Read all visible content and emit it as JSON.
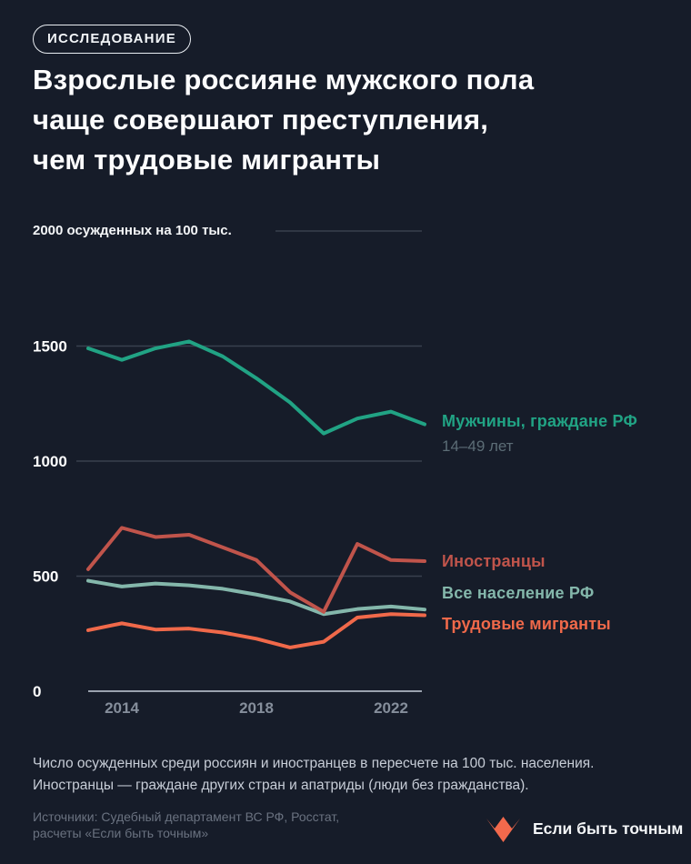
{
  "badge": {
    "label": "ИССЛЕДОВАНИЕ"
  },
  "title": {
    "lines": [
      "Взрослые россияне мужского пола",
      "чаще совершают преступления,",
      "чем трудовые мигранты"
    ]
  },
  "chart_data": {
    "type": "line",
    "title": "Число осужденных на 100 тыс. населения",
    "unit_label": "2000 осужденных на 100 тыс.",
    "x": [
      2013,
      2014,
      2015,
      2016,
      2017,
      2018,
      2019,
      2020,
      2021,
      2022,
      2023
    ],
    "x_ticks": [
      2014,
      2018,
      2022
    ],
    "y_ticks": [
      1500,
      1000,
      500,
      0
    ],
    "ylim": [
      0,
      2000
    ],
    "grid": true,
    "legend_position": "right",
    "series": [
      {
        "name": "Мужчины, граждане РФ",
        "sublabel": "14–49 лет",
        "color": "#21a384",
        "values": [
          1490,
          1440,
          1490,
          1520,
          1455,
          1360,
          1255,
          1120,
          1185,
          1215,
          1160
        ]
      },
      {
        "name": "Иностранцы",
        "color": "#c0544b",
        "values": [
          530,
          710,
          670,
          680,
          625,
          570,
          430,
          345,
          640,
          570,
          565
        ]
      },
      {
        "name": "Все население РФ",
        "color": "#84b7ab",
        "values": [
          480,
          455,
          468,
          460,
          445,
          420,
          390,
          335,
          357,
          368,
          355
        ]
      },
      {
        "name": "Трудовые мигранты",
        "color": "#f0694a",
        "values": [
          265,
          295,
          268,
          272,
          255,
          228,
          190,
          215,
          320,
          335,
          330
        ]
      }
    ],
    "colors": {
      "background": "#161c29",
      "gridline": "#39404e",
      "baseline": "#9aa2ae",
      "x_tick_label": "#858e9b",
      "y_tick_label": "#ffffff"
    }
  },
  "note": {
    "lines": [
      "Число осужденных среди россиян и иностранцев в пересчете на 100 тыс. населения.",
      "Иностранцы — граждане других стран и апатриды (люди без гражданства)."
    ]
  },
  "sources": {
    "lines": [
      "Источники: Судебный департамент ВС РФ, Росстат,",
      "расчеты «Если быть точным»"
    ]
  },
  "logo": {
    "label": "Если быть точным",
    "color": "#f2694c"
  }
}
